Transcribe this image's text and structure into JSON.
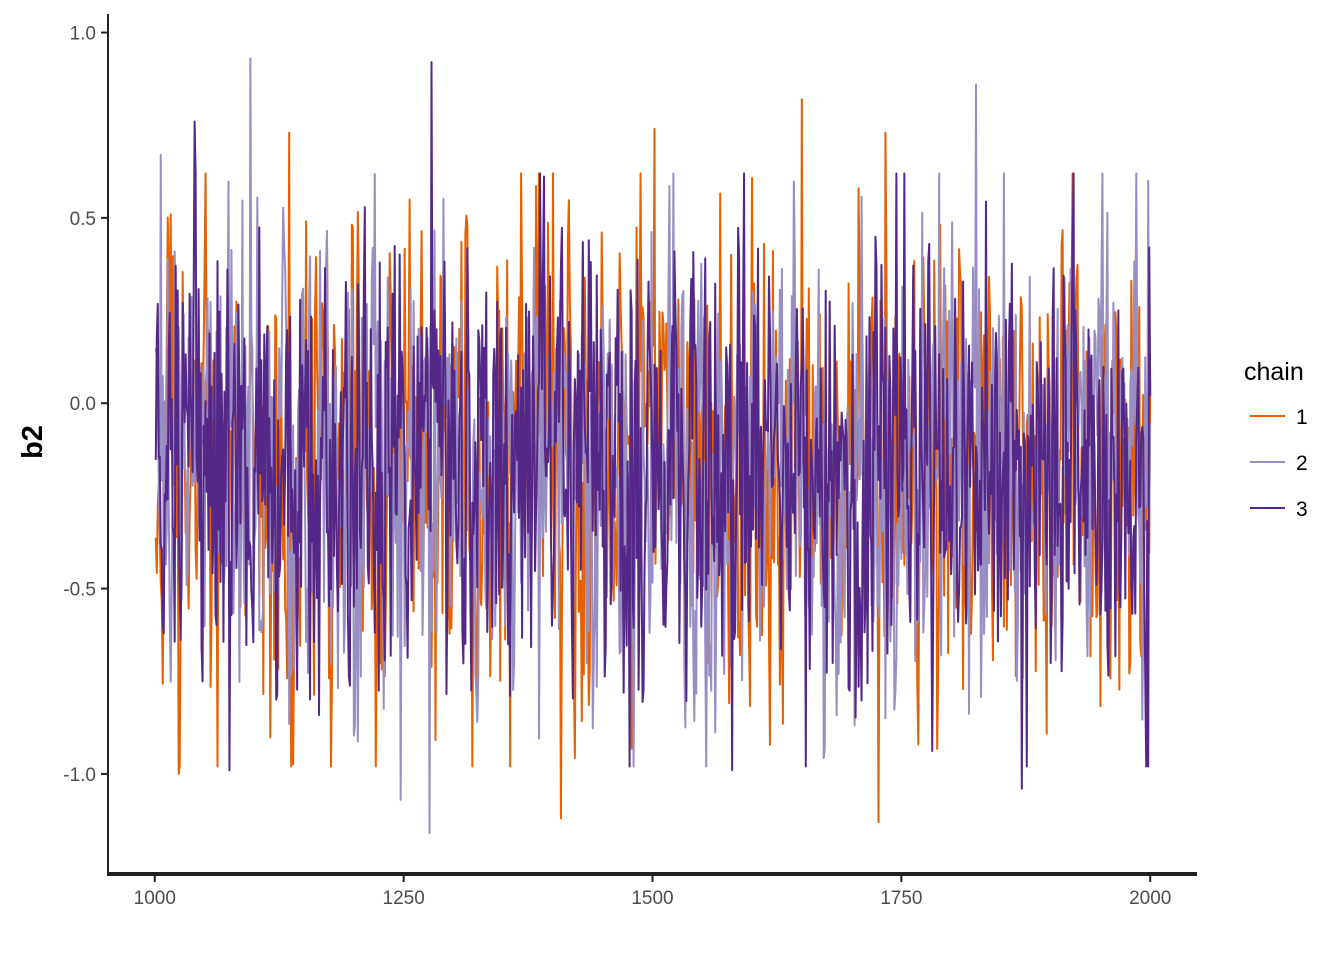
{
  "chart_data": {
    "type": "line",
    "title": "",
    "xlabel": "",
    "ylabel": "b2",
    "xlim": [
      953,
      2047
    ],
    "ylim": [
      -1.27,
      1.05
    ],
    "x_ticks": [
      1000,
      1250,
      1500,
      1750,
      2000
    ],
    "x_tick_labels": [
      "1000",
      "1250",
      "1500",
      "1750",
      "2000"
    ],
    "y_ticks": [
      -1.0,
      -0.5,
      0.0,
      0.5,
      1.0
    ],
    "y_tick_labels": [
      "-1.0",
      "-0.5",
      "0.0",
      "0.5",
      "1.0"
    ],
    "grid": false,
    "legend_title": "chain",
    "legend_position": "right",
    "iterations": {
      "start": 1001,
      "end": 2000
    },
    "series": [
      {
        "name": "1",
        "color": "#e66101",
        "mean": -0.18,
        "sd": 0.3,
        "extremes": [
          [
            1024,
            -1.0
          ],
          [
            1408,
            -1.12
          ],
          [
            1727,
            -1.13
          ],
          [
            1650,
            0.82
          ],
          [
            1734,
            0.73
          ],
          [
            1502,
            0.74
          ],
          [
            1135,
            0.73
          ],
          [
            1707,
            0.58
          ]
        ]
      },
      {
        "name": "2",
        "color": "#998ec3",
        "mean": -0.18,
        "sd": 0.3,
        "extremes": [
          [
            1096,
            0.93
          ],
          [
            1276,
            -1.16
          ],
          [
            1247,
            -1.07
          ],
          [
            1825,
            0.86
          ],
          [
            1006,
            0.67
          ],
          [
            1998,
            0.6
          ]
        ]
      },
      {
        "name": "3",
        "color": "#542788",
        "mean": -0.18,
        "sd": 0.3,
        "extremes": [
          [
            1278,
            0.92
          ],
          [
            1040,
            0.76
          ],
          [
            1871,
            -1.04
          ],
          [
            1075,
            -0.99
          ],
          [
            1580,
            -0.99
          ],
          [
            1999,
            0.42
          ]
        ]
      }
    ]
  }
}
